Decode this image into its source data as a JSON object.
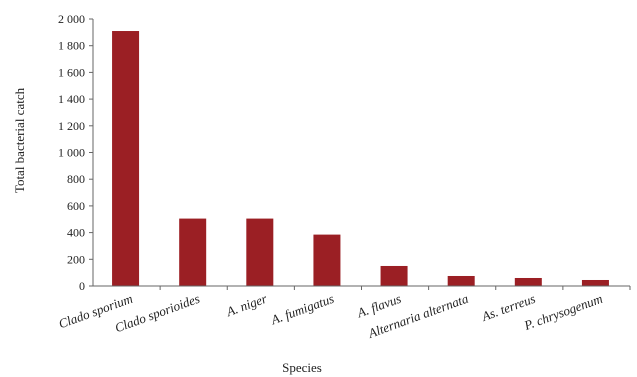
{
  "chart_data": {
    "type": "bar",
    "categories": [
      "Clado sporium",
      "Clado sporioides",
      "A. niger",
      "A. fumigatus",
      "A. flavus",
      "Alternaria alternata",
      "As. terreus",
      "P. chrysogenum"
    ],
    "values": [
      1910,
      505,
      505,
      385,
      150,
      75,
      60,
      45
    ],
    "title": "",
    "xlabel": "Species",
    "ylabel": "Total bacterial catch",
    "ylim": [
      0,
      2000
    ],
    "yticks": [
      0,
      200,
      400,
      600,
      800,
      1000,
      1200,
      1400,
      1600,
      1800,
      2000
    ],
    "ytick_labels": [
      "0",
      "200",
      "400",
      "600",
      "800",
      "1 000",
      "1 200",
      "1 400",
      "1 600",
      "1 800",
      "2 000"
    ],
    "grid": false,
    "legend": "none",
    "bar_color": "#9b1f24"
  }
}
